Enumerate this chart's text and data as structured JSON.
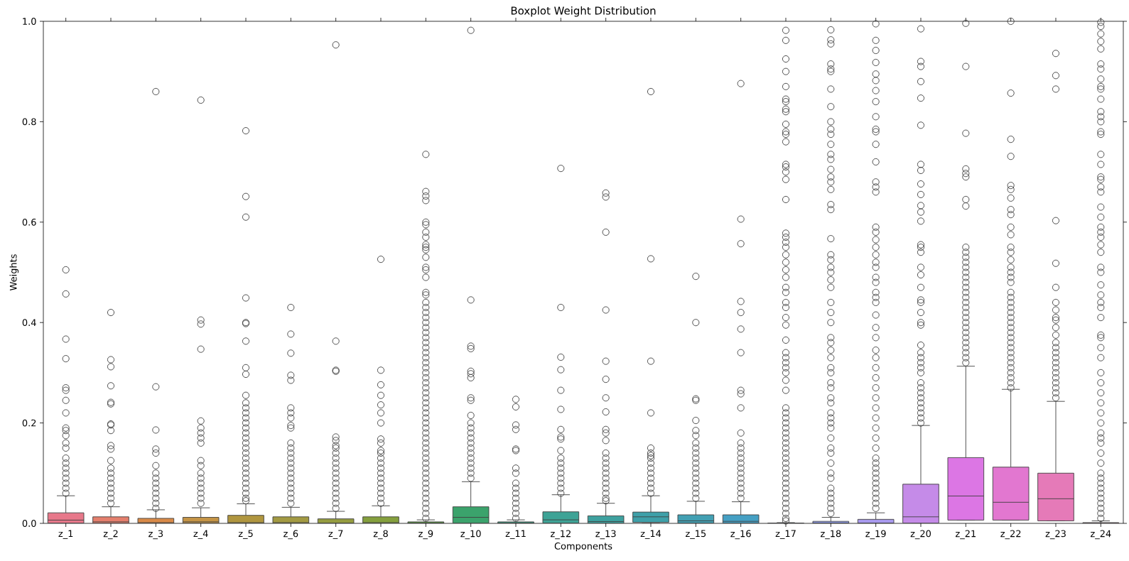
{
  "chart_data": {
    "type": "box",
    "title": "Boxplot Weight Distribution",
    "xlabel": "Components",
    "ylabel": "Weights",
    "categories": [
      "z_1",
      "z_2",
      "z_3",
      "z_4",
      "z_5",
      "z_6",
      "z_7",
      "z_8",
      "z_9",
      "z_10",
      "z_11",
      "z_12",
      "z_13",
      "z_14",
      "z_15",
      "z_16",
      "z_17",
      "z_18",
      "z_19",
      "z_20",
      "z_21",
      "z_22",
      "z_23",
      "z_24"
    ],
    "colors": [
      "#e7788a",
      "#e57f6d",
      "#d98a48",
      "#c59446",
      "#b0963f",
      "#a39a42",
      "#959c40",
      "#85a03d",
      "#5ea545",
      "#3ba36c",
      "#3ca388",
      "#3ea396",
      "#3ea19f",
      "#3fa0a9",
      "#42a0b3",
      "#45a0c4",
      "#6e9fe0",
      "#8f9cea",
      "#a99aee",
      "#c58be8",
      "#dc76e4",
      "#e277d0",
      "#e57ab8",
      "#e77da6"
    ],
    "ylim": [
      0,
      1
    ],
    "yticks": [
      {
        "value": 0,
        "label": "0.0"
      },
      {
        "value": 0.2,
        "label": "0.2"
      },
      {
        "value": 0.4,
        "label": "0.4"
      },
      {
        "value": 0.6,
        "label": "0.6"
      },
      {
        "value": 0.8,
        "label": "0.8"
      },
      {
        "value": 1,
        "label": "1.0"
      }
    ],
    "boxes": [
      {
        "low": 0,
        "q1": 0.0005,
        "median": 0.0065,
        "q3": 0.021,
        "high": 0.055,
        "outliers": [
          0.505,
          0.457,
          0.367,
          0.328,
          0.27,
          0.265,
          0.245,
          0.22,
          0.19,
          0.185,
          0.175,
          0.16,
          0.15,
          0.13,
          0.12,
          0.11,
          0.1,
          0.09,
          0.08,
          0.07,
          0.06
        ]
      },
      {
        "low": 0,
        "q1": 0.0003,
        "median": 0.003,
        "q3": 0.013,
        "high": 0.033,
        "outliers": [
          0.42,
          0.326,
          0.312,
          0.274,
          0.241,
          0.238,
          0.198,
          0.196,
          0.185,
          0.155,
          0.148,
          0.125,
          0.11,
          0.1,
          0.09,
          0.08,
          0.07,
          0.06,
          0.05,
          0.04
        ]
      },
      {
        "low": 0,
        "q1": 0.0002,
        "median": 0.0015,
        "q3": 0.01,
        "high": 0.027,
        "outliers": [
          0.86,
          0.272,
          0.186,
          0.148,
          0.14,
          0.115,
          0.1,
          0.09,
          0.08,
          0.07,
          0.06,
          0.05,
          0.04,
          0.03
        ]
      },
      {
        "low": 0,
        "q1": 0.0003,
        "median": 0.003,
        "q3": 0.012,
        "high": 0.031,
        "outliers": [
          0.843,
          0.405,
          0.397,
          0.347,
          0.204,
          0.19,
          0.18,
          0.17,
          0.16,
          0.125,
          0.115,
          0.1,
          0.09,
          0.08,
          0.07,
          0.06,
          0.05,
          0.04
        ]
      },
      {
        "low": 0,
        "q1": 0.0002,
        "median": 0.0015,
        "q3": 0.016,
        "high": 0.039,
        "outliers": [
          0.782,
          0.651,
          0.61,
          0.449,
          0.4,
          0.398,
          0.363,
          0.31,
          0.297,
          0.255,
          0.24,
          0.23,
          0.22,
          0.21,
          0.2,
          0.19,
          0.18,
          0.17,
          0.16,
          0.15,
          0.14,
          0.13,
          0.12,
          0.11,
          0.1,
          0.09,
          0.08,
          0.07,
          0.06,
          0.05,
          0.045
        ]
      },
      {
        "low": 0,
        "q1": 0.0002,
        "median": 0.0015,
        "q3": 0.013,
        "high": 0.032,
        "outliers": [
          0.43,
          0.377,
          0.339,
          0.295,
          0.285,
          0.23,
          0.22,
          0.21,
          0.195,
          0.19,
          0.16,
          0.15,
          0.14,
          0.13,
          0.12,
          0.11,
          0.1,
          0.09,
          0.08,
          0.07,
          0.06,
          0.05,
          0.04
        ]
      },
      {
        "low": 0,
        "q1": 0.0001,
        "median": 0.0005,
        "q3": 0.009,
        "high": 0.024,
        "outliers": [
          0.953,
          0.363,
          0.305,
          0.303,
          0.172,
          0.165,
          0.155,
          0.15,
          0.14,
          0.13,
          0.12,
          0.11,
          0.1,
          0.09,
          0.08,
          0.07,
          0.06,
          0.05,
          0.04,
          0.03
        ]
      },
      {
        "low": 0,
        "q1": 0.0002,
        "median": 0.0015,
        "q3": 0.013,
        "high": 0.035,
        "outliers": [
          0.526,
          0.305,
          0.276,
          0.255,
          0.236,
          0.22,
          0.2,
          0.168,
          0.16,
          0.145,
          0.14,
          0.13,
          0.12,
          0.11,
          0.1,
          0.09,
          0.08,
          0.07,
          0.06,
          0.05,
          0.04
        ]
      },
      {
        "low": 0,
        "q1": 0.0001,
        "median": 0.0007,
        "q3": 0.003,
        "high": 0.007,
        "outliers": [
          0.735,
          0.661,
          0.652,
          0.643,
          0.6,
          0.595,
          0.58,
          0.57,
          0.555,
          0.55,
          0.545,
          0.53,
          0.51,
          0.505,
          0.49,
          0.46,
          0.455,
          0.44,
          0.43,
          0.42,
          0.41,
          0.4,
          0.39,
          0.38,
          0.37,
          0.36,
          0.35,
          0.34,
          0.33,
          0.32,
          0.31,
          0.3,
          0.29,
          0.28,
          0.27,
          0.26,
          0.25,
          0.24,
          0.23,
          0.22,
          0.21,
          0.2,
          0.19,
          0.18,
          0.17,
          0.16,
          0.15,
          0.14,
          0.13,
          0.12,
          0.11,
          0.1,
          0.09,
          0.08,
          0.07,
          0.06,
          0.05,
          0.04,
          0.03,
          0.02,
          0.01
        ]
      },
      {
        "low": 0,
        "q1": 0.0005,
        "median": 0.012,
        "q3": 0.033,
        "high": 0.083,
        "outliers": [
          0.982,
          0.445,
          0.353,
          0.348,
          0.303,
          0.298,
          0.29,
          0.25,
          0.245,
          0.215,
          0.2,
          0.19,
          0.18,
          0.17,
          0.16,
          0.15,
          0.14,
          0.13,
          0.12,
          0.11,
          0.1,
          0.09
        ]
      },
      {
        "low": 0,
        "q1": 0.0001,
        "median": 0.0007,
        "q3": 0.003,
        "high": 0.007,
        "outliers": [
          0.247,
          0.232,
          0.196,
          0.187,
          0.148,
          0.145,
          0.11,
          0.1,
          0.08,
          0.07,
          0.06,
          0.05,
          0.04,
          0.03,
          0.02,
          0.01
        ]
      },
      {
        "low": 0,
        "q1": 0.0005,
        "median": 0.007,
        "q3": 0.023,
        "high": 0.057,
        "outliers": [
          0.707,
          0.43,
          0.331,
          0.306,
          0.265,
          0.227,
          0.187,
          0.172,
          0.168,
          0.145,
          0.13,
          0.12,
          0.11,
          0.1,
          0.09,
          0.08,
          0.07,
          0.06
        ]
      },
      {
        "low": 0,
        "q1": 0.0003,
        "median": 0.0036,
        "q3": 0.015,
        "high": 0.04,
        "outliers": [
          0.658,
          0.65,
          0.58,
          0.425,
          0.323,
          0.287,
          0.25,
          0.222,
          0.187,
          0.18,
          0.165,
          0.14,
          0.13,
          0.12,
          0.11,
          0.1,
          0.09,
          0.08,
          0.07,
          0.06,
          0.05,
          0.045
        ]
      },
      {
        "low": 0,
        "q1": 0.002,
        "median": 0.013,
        "q3": 0.0225,
        "high": 0.055,
        "outliers": [
          0.86,
          0.527,
          0.323,
          0.22,
          0.15,
          0.14,
          0.135,
          0.13,
          0.12,
          0.11,
          0.1,
          0.09,
          0.08,
          0.07,
          0.06
        ]
      },
      {
        "low": 0,
        "q1": 0.0005,
        "median": 0.005,
        "q3": 0.017,
        "high": 0.044,
        "outliers": [
          0.492,
          0.4,
          0.248,
          0.245,
          0.205,
          0.185,
          0.175,
          0.16,
          0.15,
          0.14,
          0.13,
          0.12,
          0.11,
          0.1,
          0.09,
          0.08,
          0.07,
          0.06,
          0.05
        ]
      },
      {
        "low": 0,
        "q1": 0.0005,
        "median": 0.004,
        "q3": 0.017,
        "high": 0.043,
        "outliers": [
          0.876,
          0.606,
          0.557,
          0.442,
          0.42,
          0.387,
          0.34,
          0.265,
          0.258,
          0.23,
          0.18,
          0.16,
          0.15,
          0.14,
          0.13,
          0.12,
          0.11,
          0.1,
          0.09,
          0.08,
          0.07,
          0.06,
          0.05
        ]
      },
      {
        "low": 0,
        "q1": 0,
        "median": 0.0002,
        "q3": 0.0007,
        "high": 0.0015,
        "outliers": [
          0.982,
          0.962,
          0.925,
          0.9,
          0.87,
          0.845,
          0.84,
          0.825,
          0.82,
          0.795,
          0.78,
          0.775,
          0.76,
          0.715,
          0.71,
          0.7,
          0.685,
          0.645,
          0.578,
          0.57,
          0.56,
          0.55,
          0.535,
          0.52,
          0.505,
          0.49,
          0.47,
          0.46,
          0.44,
          0.43,
          0.41,
          0.395,
          0.365,
          0.34,
          0.33,
          0.32,
          0.31,
          0.3,
          0.285,
          0.265,
          0.23,
          0.22,
          0.21,
          0.2,
          0.19,
          0.18,
          0.17,
          0.16,
          0.15,
          0.14,
          0.13,
          0.12,
          0.11,
          0.1,
          0.09,
          0.08,
          0.07,
          0.06,
          0.05,
          0.04,
          0.03,
          0.02,
          0.01,
          0.005
        ]
      },
      {
        "low": 0,
        "q1": 0.0001,
        "median": 0.0007,
        "q3": 0.004,
        "high": 0.012,
        "outliers": [
          0.983,
          0.963,
          0.955,
          0.915,
          0.905,
          0.9,
          0.865,
          0.83,
          0.8,
          0.785,
          0.775,
          0.755,
          0.735,
          0.725,
          0.705,
          0.69,
          0.68,
          0.665,
          0.635,
          0.625,
          0.567,
          0.535,
          0.525,
          0.51,
          0.5,
          0.485,
          0.47,
          0.44,
          0.42,
          0.4,
          0.37,
          0.36,
          0.345,
          0.33,
          0.31,
          0.3,
          0.28,
          0.27,
          0.25,
          0.24,
          0.22,
          0.21,
          0.2,
          0.19,
          0.17,
          0.15,
          0.14,
          0.12,
          0.1,
          0.09,
          0.07,
          0.06,
          0.05,
          0.04,
          0.03,
          0.02
        ]
      },
      {
        "low": 0,
        "q1": 0.0001,
        "median": 0.0007,
        "q3": 0.008,
        "high": 0.021,
        "outliers": [
          0.995,
          0.962,
          0.942,
          0.918,
          0.895,
          0.882,
          0.862,
          0.84,
          0.81,
          0.785,
          0.78,
          0.755,
          0.72,
          0.68,
          0.67,
          0.66,
          0.59,
          0.58,
          0.565,
          0.55,
          0.535,
          0.52,
          0.51,
          0.49,
          0.48,
          0.46,
          0.45,
          0.44,
          0.415,
          0.39,
          0.37,
          0.345,
          0.33,
          0.31,
          0.29,
          0.27,
          0.25,
          0.23,
          0.21,
          0.19,
          0.17,
          0.15,
          0.13,
          0.12,
          0.11,
          0.1,
          0.09,
          0.08,
          0.07,
          0.06,
          0.05,
          0.04,
          0.03
        ]
      },
      {
        "low": 0,
        "q1": 0.0005,
        "median": 0.013,
        "q3": 0.078,
        "high": 0.195,
        "outliers": [
          0.985,
          0.92,
          0.91,
          0.88,
          0.847,
          0.793,
          0.715,
          0.703,
          0.676,
          0.655,
          0.633,
          0.62,
          0.602,
          0.555,
          0.55,
          0.54,
          0.51,
          0.495,
          0.47,
          0.445,
          0.44,
          0.42,
          0.4,
          0.395,
          0.355,
          0.34,
          0.33,
          0.32,
          0.31,
          0.3,
          0.28,
          0.27,
          0.26,
          0.25,
          0.24,
          0.23,
          0.22,
          0.21,
          0.2
        ]
      },
      {
        "low": 0.0065,
        "q1": 0.0065,
        "median": 0.0545,
        "q3": 0.131,
        "high": 0.313,
        "outliers": [
          0.996,
          0.91,
          0.777,
          0.706,
          0.697,
          0.69,
          0.645,
          0.632,
          0.55,
          0.54,
          0.53,
          0.52,
          0.51,
          0.5,
          0.49,
          0.48,
          0.47,
          0.46,
          0.45,
          0.44,
          0.43,
          0.42,
          0.41,
          0.4,
          0.39,
          0.38,
          0.37,
          0.36,
          0.35,
          0.34,
          0.33,
          0.32
        ]
      },
      {
        "low": 0.0065,
        "q1": 0.0065,
        "median": 0.042,
        "q3": 0.112,
        "high": 0.267,
        "outliers": [
          1.0,
          0.857,
          0.765,
          0.731,
          0.673,
          0.665,
          0.648,
          0.625,
          0.615,
          0.59,
          0.575,
          0.55,
          0.54,
          0.525,
          0.51,
          0.5,
          0.49,
          0.48,
          0.46,
          0.45,
          0.44,
          0.43,
          0.42,
          0.41,
          0.4,
          0.39,
          0.38,
          0.37,
          0.36,
          0.35,
          0.34,
          0.33,
          0.32,
          0.31,
          0.3,
          0.29,
          0.28,
          0.27
        ]
      },
      {
        "low": 0.005,
        "q1": 0.005,
        "median": 0.049,
        "q3": 0.1,
        "high": 0.243,
        "outliers": [
          0.936,
          0.892,
          0.865,
          0.603,
          0.518,
          0.47,
          0.44,
          0.425,
          0.41,
          0.405,
          0.39,
          0.375,
          0.36,
          0.35,
          0.34,
          0.33,
          0.32,
          0.31,
          0.3,
          0.29,
          0.28,
          0.27,
          0.26,
          0.25
        ]
      },
      {
        "low": 0,
        "q1": 0,
        "median": 0.0005,
        "q3": 0.0015,
        "high": 0.005,
        "outliers": [
          0.998,
          0.99,
          0.975,
          0.96,
          0.945,
          0.915,
          0.905,
          0.885,
          0.87,
          0.865,
          0.845,
          0.82,
          0.81,
          0.8,
          0.78,
          0.775,
          0.735,
          0.715,
          0.69,
          0.685,
          0.67,
          0.66,
          0.63,
          0.61,
          0.59,
          0.58,
          0.57,
          0.555,
          0.54,
          0.51,
          0.5,
          0.475,
          0.455,
          0.44,
          0.43,
          0.41,
          0.375,
          0.37,
          0.35,
          0.33,
          0.3,
          0.28,
          0.26,
          0.24,
          0.22,
          0.2,
          0.18,
          0.17,
          0.16,
          0.14,
          0.12,
          0.1,
          0.09,
          0.08,
          0.07,
          0.06,
          0.05,
          0.04,
          0.03,
          0.02,
          0.01
        ]
      }
    ]
  }
}
